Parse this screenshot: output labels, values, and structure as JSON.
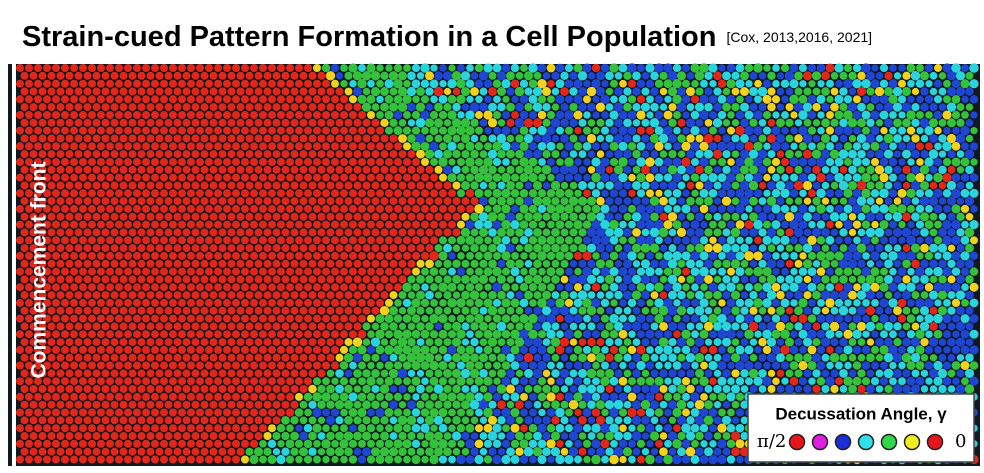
{
  "header": {
    "title": "Strain-cued Pattern Formation in a Cell Population",
    "citation": "[Cox, 2013,2016, 2021]"
  },
  "figure": {
    "side_label": "Commencement front"
  },
  "legend": {
    "title": "Decussation Angle, γ",
    "left_label": "π/2",
    "right_label": "0",
    "colors": [
      "#e8141c",
      "#e01ee0",
      "#1a2fd8",
      "#2fe0e8",
      "#2ed84a",
      "#f0ee20",
      "#e8141c"
    ]
  }
}
